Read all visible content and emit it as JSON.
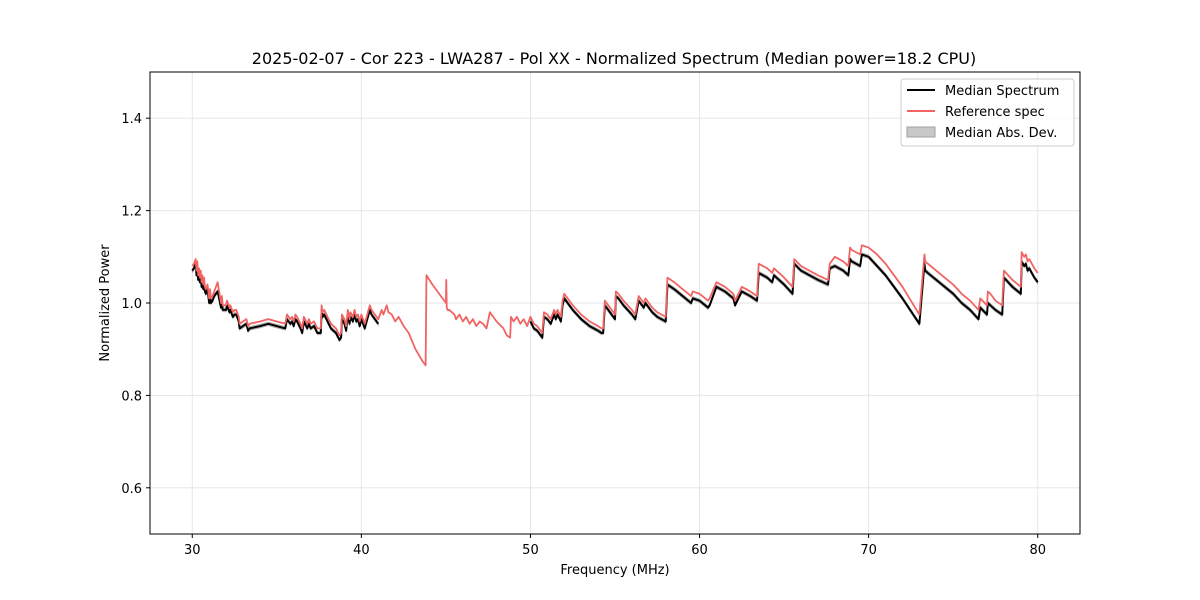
{
  "chart_data": {
    "type": "line",
    "title": "2025-02-07 - Cor 223 - LWA287 - Pol XX - Normalized Spectrum (Median power=18.2 CPU)",
    "xlabel": "Frequency (MHz)",
    "ylabel": "Normalized Power",
    "xlim": [
      27.5,
      82.5
    ],
    "ylim": [
      0.5,
      1.5
    ],
    "xticks": [
      30,
      40,
      50,
      60,
      70,
      80
    ],
    "xtick_labels": [
      "30",
      "40",
      "50",
      "60",
      "70",
      "80"
    ],
    "yticks": [
      0.6,
      0.8,
      1.0,
      1.2,
      1.4
    ],
    "ytick_labels": [
      "0.6",
      "0.8",
      "1.0",
      "1.2",
      "1.4"
    ],
    "grid": true,
    "legend": {
      "location": "top-right",
      "entries": [
        "Median Spectrum",
        "Reference spec",
        "Median Abs. Dev."
      ]
    },
    "colors": {
      "median": "#000000",
      "reference": "#f06464",
      "mad": "#c8c8c8",
      "mad_edge": "#a0a0a0"
    },
    "mad_halfwidth": 0.004,
    "series": [
      {
        "name": "Median Spectrum",
        "segments": [
          {
            "x": [
              30.0,
              30.1,
              30.2,
              30.25,
              30.3,
              30.35,
              30.4,
              30.45,
              30.5,
              30.55,
              30.6,
              30.65,
              30.7,
              30.75,
              30.8,
              30.9,
              31.0,
              31.05,
              31.1,
              31.2,
              31.3,
              31.4,
              31.5,
              31.7,
              31.75,
              31.8,
              32.0,
              32.05,
              32.2,
              32.25,
              32.4,
              32.5,
              32.6,
              32.75,
              32.8,
              33.0,
              33.2,
              33.3,
              33.4,
              34.0,
              34.5,
              35.0,
              35.5,
              35.6,
              35.8,
              35.9,
              36.0,
              36.1,
              36.2,
              36.4,
              36.5,
              36.6,
              36.8,
              36.9,
              37.0,
              37.2,
              37.4,
              37.6,
              37.65,
              37.7,
              37.8,
              38.0,
              38.2,
              38.5,
              38.7,
              38.8,
              38.85,
              39.0,
              39.1,
              39.2,
              39.3,
              39.35,
              39.5,
              39.6,
              39.7,
              39.8,
              39.9,
              40.0,
              40.1,
              40.2,
              40.5,
              40.6,
              40.8,
              41.0
            ],
            "y": [
              1.07,
              1.075,
              1.085,
              1.06,
              1.08,
              1.05,
              1.065,
              1.045,
              1.06,
              1.035,
              1.05,
              1.03,
              1.045,
              1.025,
              1.02,
              1.03,
              1.0,
              1.02,
              1.0,
              1.005,
              1.015,
              1.02,
              1.025,
              0.99,
              1.005,
              0.985,
              0.985,
              0.995,
              0.98,
              0.985,
              0.97,
              0.975,
              0.975,
              0.96,
              0.945,
              0.95,
              0.955,
              0.94,
              0.945,
              0.95,
              0.955,
              0.95,
              0.945,
              0.965,
              0.955,
              0.96,
              0.95,
              0.965,
              0.96,
              0.945,
              0.935,
              0.96,
              0.945,
              0.955,
              0.945,
              0.95,
              0.935,
              0.935,
              0.985,
              0.97,
              0.975,
              0.96,
              0.945,
              0.935,
              0.92,
              0.925,
              0.965,
              0.955,
              0.94,
              0.975,
              0.955,
              0.97,
              0.96,
              0.975,
              0.96,
              0.965,
              0.95,
              0.965,
              0.955,
              0.945,
              0.985,
              0.975,
              0.965,
              0.955
            ]
          },
          {
            "x": [
              50.0,
              50.2,
              50.4,
              50.6,
              50.7,
              50.8,
              51.0,
              51.2,
              51.4,
              51.5,
              51.6,
              51.8,
              51.9,
              52.0,
              52.2,
              52.5,
              53.0,
              53.5,
              54.0,
              54.2,
              54.3,
              54.4,
              54.6,
              54.8,
              55.0,
              55.05,
              55.2,
              55.5,
              56.0,
              56.2,
              56.4,
              56.7,
              56.8,
              57.0,
              57.2,
              57.5,
              58.0,
              58.1,
              58.5,
              59.0,
              59.5,
              59.6,
              60.0,
              60.5,
              60.6,
              61.0,
              61.5,
              62.0,
              62.1,
              62.5,
              63.0,
              63.4,
              63.5,
              64.0,
              64.3,
              64.4,
              65.0,
              65.5,
              65.6,
              66.0,
              67.0,
              67.6,
              67.7,
              68.0,
              68.5,
              68.8,
              68.9,
              69.0,
              69.5,
              69.6,
              70.0,
              70.5,
              71.0,
              72.0,
              73.0,
              73.3,
              73.35,
              73.5,
              74.0,
              75.0,
              75.5,
              76.0,
              76.5,
              76.6,
              77.0,
              77.05,
              77.2,
              77.5,
              77.9,
              78.0,
              78.5,
              79.0,
              79.05,
              79.2,
              79.3,
              79.4,
              79.5,
              79.8,
              80.0
            ],
            "y": [
              0.96,
              0.945,
              0.94,
              0.93,
              0.925,
              0.97,
              0.965,
              0.955,
              0.975,
              0.965,
              0.975,
              0.96,
              0.995,
              1.01,
              1.0,
              0.985,
              0.965,
              0.95,
              0.94,
              0.935,
              0.935,
              0.995,
              0.985,
              0.975,
              0.965,
              1.015,
              1.01,
              0.995,
              0.975,
              0.965,
              1.005,
              0.99,
              1.0,
              0.99,
              0.98,
              0.97,
              0.96,
              1.04,
              1.03,
              1.015,
              1.0,
              1.01,
              1.005,
              0.99,
              0.995,
              1.035,
              1.025,
              1.01,
              0.995,
              1.025,
              1.015,
              1.005,
              1.065,
              1.055,
              1.045,
              1.06,
              1.04,
              1.02,
              1.085,
              1.07,
              1.05,
              1.04,
              1.075,
              1.08,
              1.07,
              1.06,
              1.095,
              1.09,
              1.08,
              1.105,
              1.1,
              1.08,
              1.06,
              1.01,
              0.955,
              1.085,
              1.07,
              1.065,
              1.05,
              1.02,
              1.0,
              0.985,
              0.965,
              0.99,
              0.975,
              1.0,
              0.995,
              0.985,
              0.975,
              1.055,
              1.035,
              1.02,
              1.09,
              1.08,
              1.085,
              1.07,
              1.075,
              1.055,
              1.045
            ]
          }
        ]
      },
      {
        "name": "Reference spec",
        "segments": [
          {
            "x": [
              30.0,
              30.1,
              30.2,
              30.25,
              30.3,
              30.35,
              30.4,
              30.45,
              30.5,
              30.55,
              30.6,
              30.65,
              30.7,
              30.75,
              30.8,
              30.9,
              31.0,
              31.05,
              31.1,
              31.2,
              31.3,
              31.4,
              31.5,
              31.7,
              31.75,
              31.8,
              32.0,
              32.05,
              32.2,
              32.25,
              32.4,
              32.5,
              32.6,
              32.75,
              32.8,
              33.0,
              33.2,
              33.3,
              33.4,
              34.0,
              34.5,
              35.0,
              35.5,
              35.6,
              35.8,
              35.9,
              36.0,
              36.1,
              36.2,
              36.4,
              36.5,
              36.6,
              36.8,
              36.9,
              37.0,
              37.2,
              37.4,
              37.6,
              37.65,
              37.7,
              37.8,
              38.0,
              38.2,
              38.5,
              38.7,
              38.8,
              38.85,
              39.0,
              39.1,
              39.2,
              39.3,
              39.35,
              39.5,
              39.6,
              39.7,
              39.8,
              39.9,
              40.0,
              40.1,
              40.2,
              40.5,
              40.6,
              40.8,
              41.0,
              41.2,
              41.3,
              41.5,
              41.6,
              41.8,
              42.0,
              42.2,
              42.5,
              42.8,
              43.2,
              43.6,
              43.8,
              43.85,
              44.2,
              44.6,
              45.0,
              45.02,
              45.05,
              45.1,
              45.2,
              45.5,
              45.6,
              45.8,
              46.0,
              46.2,
              46.4,
              46.6,
              46.8,
              47.0,
              47.2,
              47.4,
              47.6,
              47.8,
              48.0,
              48.4,
              48.6,
              48.8,
              48.85,
              49.0,
              49.2,
              49.4,
              49.6,
              49.8,
              50.0,
              50.2,
              50.4,
              50.6,
              50.7,
              50.8,
              51.0,
              51.2,
              51.4,
              51.5,
              51.6,
              51.8,
              51.9,
              52.0,
              52.2,
              52.5,
              53.0,
              53.5,
              54.0,
              54.2,
              54.3,
              54.4,
              54.6,
              54.8,
              55.0,
              55.05,
              55.2,
              55.5,
              56.0,
              56.2,
              56.4,
              56.7,
              56.8,
              57.0,
              57.2,
              57.5,
              58.0,
              58.1,
              58.5,
              59.0,
              59.5,
              59.6,
              60.0,
              60.5,
              60.6,
              61.0,
              61.5,
              62.0,
              62.1,
              62.5,
              63.0,
              63.4,
              63.5,
              64.0,
              64.3,
              64.4,
              65.0,
              65.5,
              65.6,
              66.0,
              67.0,
              67.6,
              67.7,
              68.0,
              68.5,
              68.8,
              68.9,
              69.0,
              69.5,
              69.6,
              70.0,
              70.5,
              71.0,
              72.0,
              73.0,
              73.3,
              73.35,
              73.5,
              74.0,
              75.0,
              75.5,
              76.0,
              76.5,
              76.6,
              77.0,
              77.05,
              77.2,
              77.5,
              77.9,
              78.0,
              78.5,
              79.0,
              79.05,
              79.2,
              79.3,
              79.4,
              79.5,
              79.8,
              80.0
            ],
            "y": [
              1.08,
              1.085,
              1.095,
              1.07,
              1.09,
              1.06,
              1.075,
              1.055,
              1.07,
              1.045,
              1.06,
              1.04,
              1.055,
              1.035,
              1.03,
              1.04,
              1.01,
              1.03,
              1.01,
              1.015,
              1.025,
              1.035,
              1.045,
              1.0,
              1.015,
              0.995,
              0.995,
              1.005,
              0.99,
              0.995,
              0.98,
              0.985,
              0.985,
              0.97,
              0.955,
              0.96,
              0.965,
              0.95,
              0.955,
              0.96,
              0.965,
              0.96,
              0.955,
              0.975,
              0.965,
              0.97,
              0.96,
              0.975,
              0.97,
              0.955,
              0.945,
              0.97,
              0.955,
              0.965,
              0.955,
              0.96,
              0.945,
              0.945,
              0.995,
              0.98,
              0.985,
              0.97,
              0.955,
              0.945,
              0.93,
              0.935,
              0.975,
              0.965,
              0.95,
              0.985,
              0.965,
              0.98,
              0.97,
              0.985,
              0.97,
              0.975,
              0.96,
              0.975,
              0.965,
              0.955,
              0.995,
              0.985,
              0.975,
              0.965,
              0.985,
              0.975,
              0.995,
              0.98,
              0.975,
              0.96,
              0.97,
              0.95,
              0.935,
              0.9,
              0.875,
              0.865,
              1.06,
              1.04,
              1.02,
              1.0,
              1.05,
              0.99,
              0.985,
              0.985,
              0.975,
              0.965,
              0.975,
              0.96,
              0.97,
              0.955,
              0.965,
              0.95,
              0.96,
              0.955,
              0.945,
              0.98,
              0.97,
              0.96,
              0.945,
              0.93,
              0.925,
              0.97,
              0.96,
              0.97,
              0.955,
              0.965,
              0.95,
              0.97,
              0.955,
              0.95,
              0.94,
              0.935,
              0.98,
              0.975,
              0.965,
              0.985,
              0.975,
              0.985,
              0.97,
              1.005,
              1.02,
              1.01,
              0.995,
              0.975,
              0.96,
              0.95,
              0.945,
              0.945,
              1.005,
              0.995,
              0.985,
              0.975,
              1.025,
              1.02,
              1.005,
              0.985,
              0.975,
              1.015,
              1.0,
              1.01,
              1.0,
              0.99,
              0.98,
              0.97,
              1.055,
              1.045,
              1.03,
              1.015,
              1.025,
              1.02,
              1.005,
              1.01,
              1.045,
              1.035,
              1.02,
              1.005,
              1.035,
              1.025,
              1.015,
              1.085,
              1.075,
              1.065,
              1.075,
              1.055,
              1.035,
              1.095,
              1.08,
              1.06,
              1.05,
              1.085,
              1.1,
              1.09,
              1.08,
              1.12,
              1.115,
              1.105,
              1.125,
              1.12,
              1.105,
              1.085,
              1.035,
              0.975,
              1.105,
              1.09,
              1.085,
              1.07,
              1.04,
              1.02,
              1.005,
              0.985,
              1.01,
              0.995,
              1.025,
              1.02,
              1.005,
              0.995,
              1.07,
              1.05,
              1.035,
              1.11,
              1.1,
              1.105,
              1.09,
              1.095,
              1.075,
              1.065
            ]
          }
        ]
      }
    ]
  }
}
